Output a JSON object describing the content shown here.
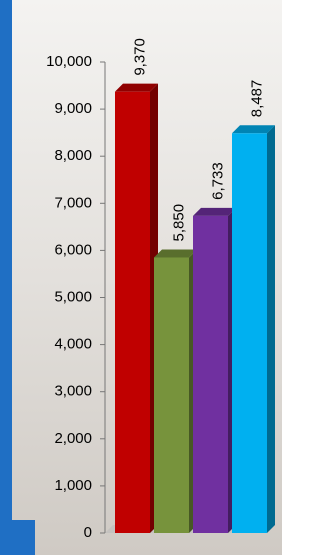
{
  "chart_data": {
    "type": "bar",
    "categories": [
      null,
      null,
      null,
      null
    ],
    "values": [
      9370,
      5850,
      6733,
      8487
    ],
    "value_labels": [
      "9,370",
      "5,850",
      "6,733",
      "8,487"
    ],
    "colors": [
      "#c00000",
      "#77933c",
      "#7030a0",
      "#00b0f0"
    ],
    "ylim": [
      0,
      10000
    ],
    "yticks": [
      0,
      {
        "value": 1000,
        "label": "1,000"
      },
      {
        "value": 2000,
        "label": "2,000"
      },
      {
        "value": 3000,
        "label": "3,000"
      },
      {
        "value": 4000,
        "label": "4,000"
      },
      {
        "value": 5000,
        "label": "5,000"
      },
      {
        "value": 6000,
        "label": "6,000"
      },
      {
        "value": 7000,
        "label": "7,000"
      },
      {
        "value": 8000,
        "label": "8,000"
      },
      {
        "value": 9000,
        "label": "9,000"
      },
      {
        "value": 10000,
        "label": "10,000"
      }
    ]
  }
}
